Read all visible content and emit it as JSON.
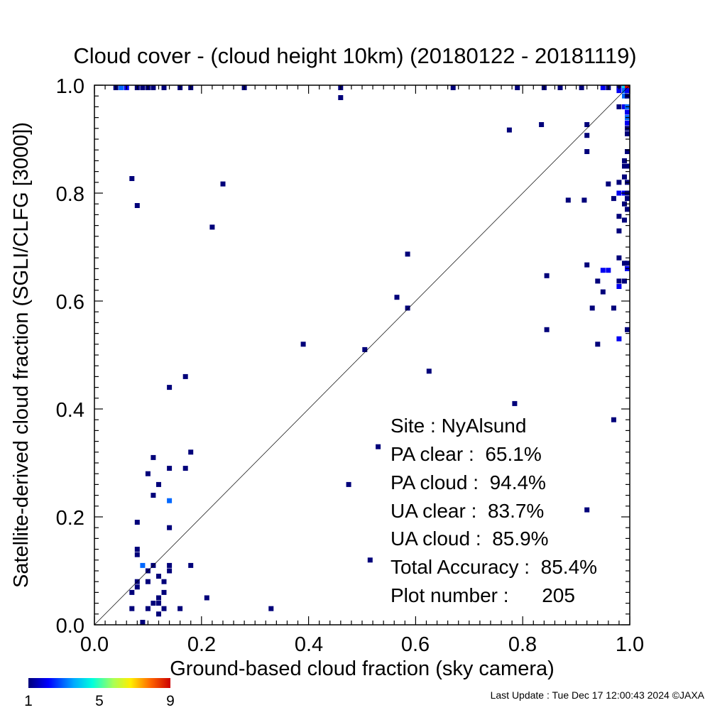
{
  "chart_data": {
    "type": "heatmap",
    "title": "Cloud cover - (cloud height 10km)  (20180122 - 20181119)",
    "xlabel": "Ground-based cloud fraction (sky camera)",
    "ylabel": "Satellite-derived cloud fraction (SGLI/CLFG [3000])",
    "xlim": [
      0.0,
      1.0
    ],
    "ylim": [
      0.0,
      1.0
    ],
    "x_ticks": [
      "0.0",
      "0.2",
      "0.4",
      "0.6",
      "0.8",
      "1.0"
    ],
    "y_ticks": [
      "0.0",
      "0.2",
      "0.4",
      "0.6",
      "0.8",
      "1.0"
    ],
    "reference_line": "y = x",
    "colorbar": {
      "ticks": [
        "1",
        "5",
        "9"
      ],
      "min": 1,
      "max": 9
    },
    "stats": [
      {
        "label": "Site : ",
        "value": "NyAlsund"
      },
      {
        "label": "PA clear :  ",
        "value": "65.1%"
      },
      {
        "label": "PA cloud :  ",
        "value": "94.4%"
      },
      {
        "label": "UA clear :  ",
        "value": "83.7%"
      },
      {
        "label": "UA cloud :  ",
        "value": "85.9%"
      },
      {
        "label": "Total Accuracy :  ",
        "value": "85.4%"
      },
      {
        "label": "Plot number :      ",
        "value": "205"
      }
    ],
    "points": [
      [
        0.04,
        1.0,
        1
      ],
      [
        0.05,
        1.0,
        3
      ],
      [
        0.06,
        1.0,
        2
      ],
      [
        0.08,
        1.0,
        1
      ],
      [
        0.09,
        1.0,
        1
      ],
      [
        0.1,
        1.0,
        1
      ],
      [
        0.11,
        1.0,
        1
      ],
      [
        0.13,
        1.0,
        1
      ],
      [
        0.16,
        1.0,
        1
      ],
      [
        0.18,
        1.0,
        1
      ],
      [
        0.28,
        1.0,
        1
      ],
      [
        0.46,
        1.0,
        1
      ],
      [
        0.67,
        1.0,
        1
      ],
      [
        0.79,
        1.0,
        1
      ],
      [
        0.84,
        1.0,
        1
      ],
      [
        0.87,
        1.0,
        1
      ],
      [
        0.91,
        1.0,
        1
      ],
      [
        0.95,
        1.0,
        2
      ],
      [
        0.96,
        1.0,
        1
      ],
      [
        0.98,
        1.0,
        1
      ],
      [
        0.99,
        1.0,
        4
      ],
      [
        1.0,
        1.0,
        9
      ],
      [
        0.46,
        0.977,
        1
      ],
      [
        0.98,
        0.99,
        2
      ],
      [
        0.99,
        0.99,
        3
      ],
      [
        1.0,
        0.99,
        2
      ],
      [
        0.99,
        0.98,
        3
      ],
      [
        1.0,
        0.98,
        1
      ],
      [
        0.98,
        0.96,
        1
      ],
      [
        0.99,
        0.96,
        2
      ],
      [
        1.0,
        0.96,
        3
      ],
      [
        1.0,
        0.95,
        2
      ],
      [
        1.0,
        0.94,
        3
      ],
      [
        1.0,
        0.93,
        2
      ],
      [
        1.0,
        0.92,
        1
      ],
      [
        1.0,
        0.91,
        1
      ],
      [
        0.775,
        0.917,
        1
      ],
      [
        0.835,
        0.927,
        1
      ],
      [
        0.92,
        0.927,
        1
      ],
      [
        0.92,
        0.907,
        1
      ],
      [
        0.92,
        0.877,
        1
      ],
      [
        1.0,
        0.877,
        1
      ],
      [
        0.99,
        0.86,
        1
      ],
      [
        0.99,
        0.85,
        1
      ],
      [
        1.0,
        0.85,
        1
      ],
      [
        0.99,
        0.83,
        1
      ],
      [
        1.0,
        0.82,
        1
      ],
      [
        0.96,
        0.817,
        1
      ],
      [
        0.98,
        0.82,
        1
      ],
      [
        0.98,
        0.8,
        2
      ],
      [
        0.99,
        0.8,
        2
      ],
      [
        1.0,
        0.8,
        1
      ],
      [
        0.97,
        0.79,
        1
      ],
      [
        1.0,
        0.79,
        1
      ],
      [
        0.885,
        0.787,
        1
      ],
      [
        0.915,
        0.787,
        1
      ],
      [
        0.99,
        0.78,
        1
      ],
      [
        1.0,
        0.77,
        1
      ],
      [
        0.98,
        0.757,
        1
      ],
      [
        0.99,
        0.75,
        1
      ],
      [
        0.98,
        0.73,
        1
      ],
      [
        0.98,
        0.68,
        1
      ],
      [
        0.99,
        0.67,
        1
      ],
      [
        1.0,
        0.67,
        1
      ],
      [
        1.0,
        0.66,
        2
      ],
      [
        0.07,
        0.827,
        1
      ],
      [
        0.08,
        0.777,
        1
      ],
      [
        0.24,
        0.817,
        1
      ],
      [
        0.22,
        0.737,
        1
      ],
      [
        0.585,
        0.687,
        1
      ],
      [
        0.565,
        0.607,
        1
      ],
      [
        0.585,
        0.587,
        1
      ],
      [
        0.39,
        0.52,
        1
      ],
      [
        0.505,
        0.51,
        1
      ],
      [
        0.625,
        0.47,
        1
      ],
      [
        0.785,
        0.41,
        1
      ],
      [
        0.845,
        0.647,
        1
      ],
      [
        0.92,
        0.667,
        1
      ],
      [
        0.94,
        0.637,
        1
      ],
      [
        0.95,
        0.657,
        2
      ],
      [
        0.96,
        0.657,
        2
      ],
      [
        0.95,
        0.617,
        1
      ],
      [
        0.93,
        0.587,
        1
      ],
      [
        0.97,
        0.587,
        1
      ],
      [
        0.98,
        0.637,
        1
      ],
      [
        0.98,
        0.627,
        2
      ],
      [
        0.99,
        0.637,
        1
      ],
      [
        0.845,
        0.547,
        1
      ],
      [
        0.94,
        0.52,
        1
      ],
      [
        1.0,
        0.547,
        1
      ],
      [
        0.98,
        0.53,
        2
      ],
      [
        0.97,
        0.38,
        1
      ],
      [
        0.92,
        0.213,
        1
      ],
      [
        0.17,
        0.46,
        1
      ],
      [
        0.14,
        0.44,
        1
      ],
      [
        0.18,
        0.32,
        1
      ],
      [
        0.11,
        0.31,
        1
      ],
      [
        0.14,
        0.29,
        1
      ],
      [
        0.17,
        0.29,
        1
      ],
      [
        0.1,
        0.28,
        1
      ],
      [
        0.12,
        0.26,
        1
      ],
      [
        0.11,
        0.24,
        1
      ],
      [
        0.14,
        0.23,
        3
      ],
      [
        0.08,
        0.19,
        1
      ],
      [
        0.14,
        0.18,
        1
      ],
      [
        0.08,
        0.14,
        1
      ],
      [
        0.08,
        0.13,
        1
      ],
      [
        0.09,
        0.11,
        3
      ],
      [
        0.1,
        0.1,
        1
      ],
      [
        0.14,
        0.11,
        1
      ],
      [
        0.14,
        0.1,
        1
      ],
      [
        0.18,
        0.11,
        1
      ],
      [
        0.12,
        0.09,
        1
      ],
      [
        0.08,
        0.08,
        1
      ],
      [
        0.08,
        0.07,
        1
      ],
      [
        0.1,
        0.08,
        1
      ],
      [
        0.07,
        0.06,
        1
      ],
      [
        0.13,
        0.06,
        1
      ],
      [
        0.12,
        0.05,
        1
      ],
      [
        0.21,
        0.05,
        1
      ],
      [
        0.11,
        0.04,
        1
      ],
      [
        0.12,
        0.04,
        1
      ],
      [
        0.07,
        0.03,
        1
      ],
      [
        0.1,
        0.03,
        1
      ],
      [
        0.13,
        0.03,
        1
      ],
      [
        0.16,
        0.03,
        1
      ],
      [
        0.12,
        0.02,
        1
      ],
      [
        0.09,
        0.0,
        1
      ],
      [
        0.11,
        0.11,
        1
      ],
      [
        0.13,
        0.08,
        1
      ],
      [
        0.33,
        0.03,
        1
      ],
      [
        0.53,
        0.33,
        1
      ],
      [
        0.475,
        0.26,
        1
      ],
      [
        0.515,
        0.12,
        1
      ]
    ]
  },
  "footer": {
    "last_update": "Last Update : Tue Dec 17 12:00:43 2024  ©JAXA"
  }
}
